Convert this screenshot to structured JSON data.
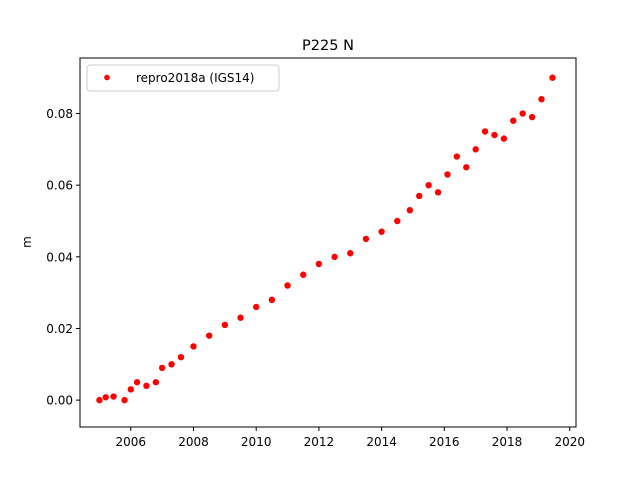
{
  "chart_data": {
    "type": "scatter",
    "title": "P225 N",
    "xlabel": "",
    "ylabel": "m",
    "xlim": [
      2004.38,
      2020.2
    ],
    "ylim": [
      -0.0075,
      0.0955
    ],
    "xticks": [
      2006,
      2008,
      2010,
      2012,
      2014,
      2016,
      2018,
      2020
    ],
    "xtick_labels": [
      "2006",
      "2008",
      "2010",
      "2012",
      "2014",
      "2016",
      "2018",
      "2020"
    ],
    "yticks": [
      0.0,
      0.02,
      0.04,
      0.06,
      0.08
    ],
    "ytick_labels": [
      "0.00",
      "0.02",
      "0.04",
      "0.06",
      "0.08"
    ],
    "grid": false,
    "legend_position": "top-left",
    "series": [
      {
        "name": "repro2018a (IGS14)",
        "color": "#ff0000",
        "marker": "circle",
        "x": [
          2005.0,
          2005.2,
          2005.45,
          2005.8,
          2006.0,
          2006.2,
          2006.5,
          2006.8,
          2007.0,
          2007.3,
          2007.6,
          2008.0,
          2008.5,
          2009.0,
          2009.5,
          2010.0,
          2010.5,
          2011.0,
          2011.5,
          2012.0,
          2012.5,
          2013.0,
          2013.5,
          2014.0,
          2014.5,
          2014.9,
          2015.2,
          2015.5,
          2015.8,
          2016.1,
          2016.4,
          2016.7,
          2017.0,
          2017.3,
          2017.6,
          2017.9,
          2018.2,
          2018.5,
          2018.8,
          2019.1,
          2019.45
        ],
        "y": [
          0.0,
          0.0008,
          0.001,
          0.0,
          0.003,
          0.005,
          0.004,
          0.005,
          0.009,
          0.01,
          0.012,
          0.015,
          0.018,
          0.021,
          0.023,
          0.026,
          0.028,
          0.032,
          0.035,
          0.038,
          0.04,
          0.041,
          0.045,
          0.047,
          0.05,
          0.053,
          0.057,
          0.06,
          0.058,
          0.063,
          0.068,
          0.065,
          0.07,
          0.075,
          0.074,
          0.073,
          0.078,
          0.08,
          0.079,
          0.084,
          0.09
        ]
      }
    ]
  }
}
